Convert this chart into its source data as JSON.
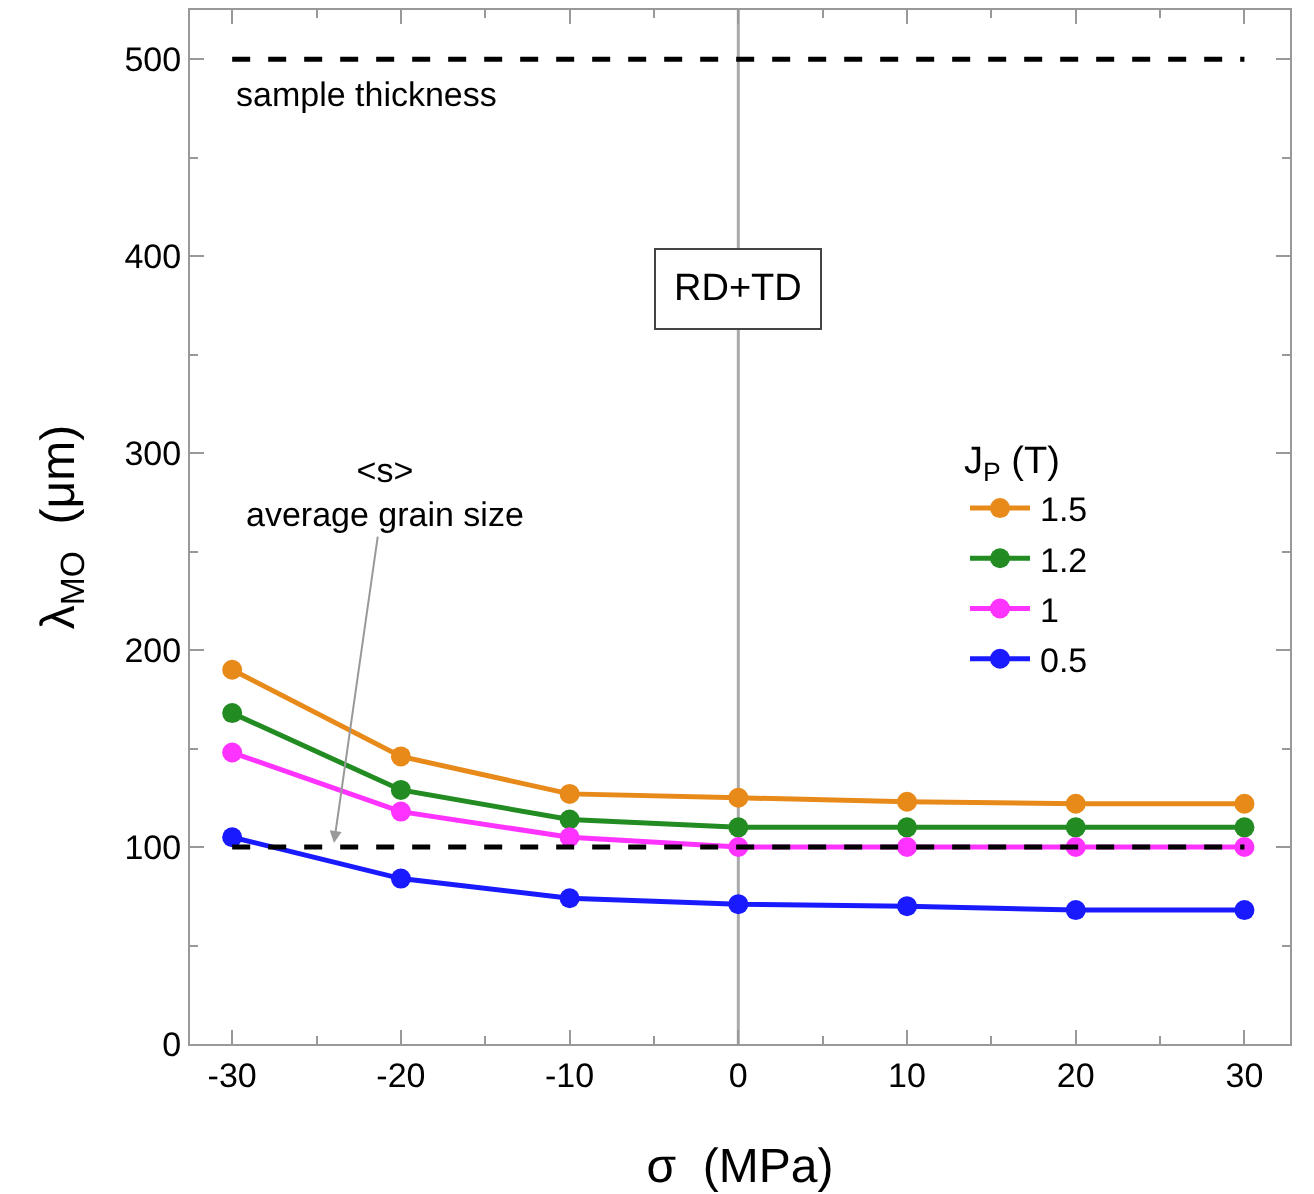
{
  "chart_data": {
    "type": "line",
    "xlabel": "σ  (MPa)",
    "ylabel": "λ$_{MO}$  (μm)",
    "legend_title": "J$_{P}$ (T)",
    "x": [
      -30,
      -20,
      -10,
      0,
      10,
      20,
      30
    ],
    "series": [
      {
        "name": "1.5",
        "color": "#e88a1a",
        "values": [
          190,
          146,
          127,
          125,
          123,
          122,
          122
        ]
      },
      {
        "name": "1.2",
        "color": "#228b22",
        "values": [
          168,
          129,
          114,
          110,
          110,
          110,
          110
        ]
      },
      {
        "name": "1",
        "color": "#ff33ff",
        "values": [
          148,
          118,
          105,
          100,
          100,
          100,
          100
        ]
      },
      {
        "name": "0.5",
        "color": "#1a1aff",
        "values": [
          105,
          84,
          74,
          71,
          70,
          68,
          68
        ]
      }
    ],
    "xlim": [
      -32.5,
      32.7
    ],
    "ylim": [
      0,
      525
    ],
    "xticks": [
      -30,
      -20,
      -10,
      0,
      10,
      20,
      30
    ],
    "yticks": [
      0,
      100,
      200,
      300,
      400,
      500
    ],
    "ref_lines": [
      {
        "axis": "y",
        "value": 500,
        "label": "sample thickness",
        "line_style": "dashed",
        "color": "#000000"
      },
      {
        "axis": "y",
        "value": 100,
        "label": "<s>\naverage grain size",
        "line_style": "dashed",
        "color": "#000000"
      },
      {
        "axis": "x",
        "value": 0,
        "color": "#aaaaaa",
        "line_style": "solid"
      }
    ],
    "annotations": [
      "RD+TD"
    ],
    "marker": "circle",
    "line_style": "solid",
    "grid": false,
    "legend": "right"
  }
}
